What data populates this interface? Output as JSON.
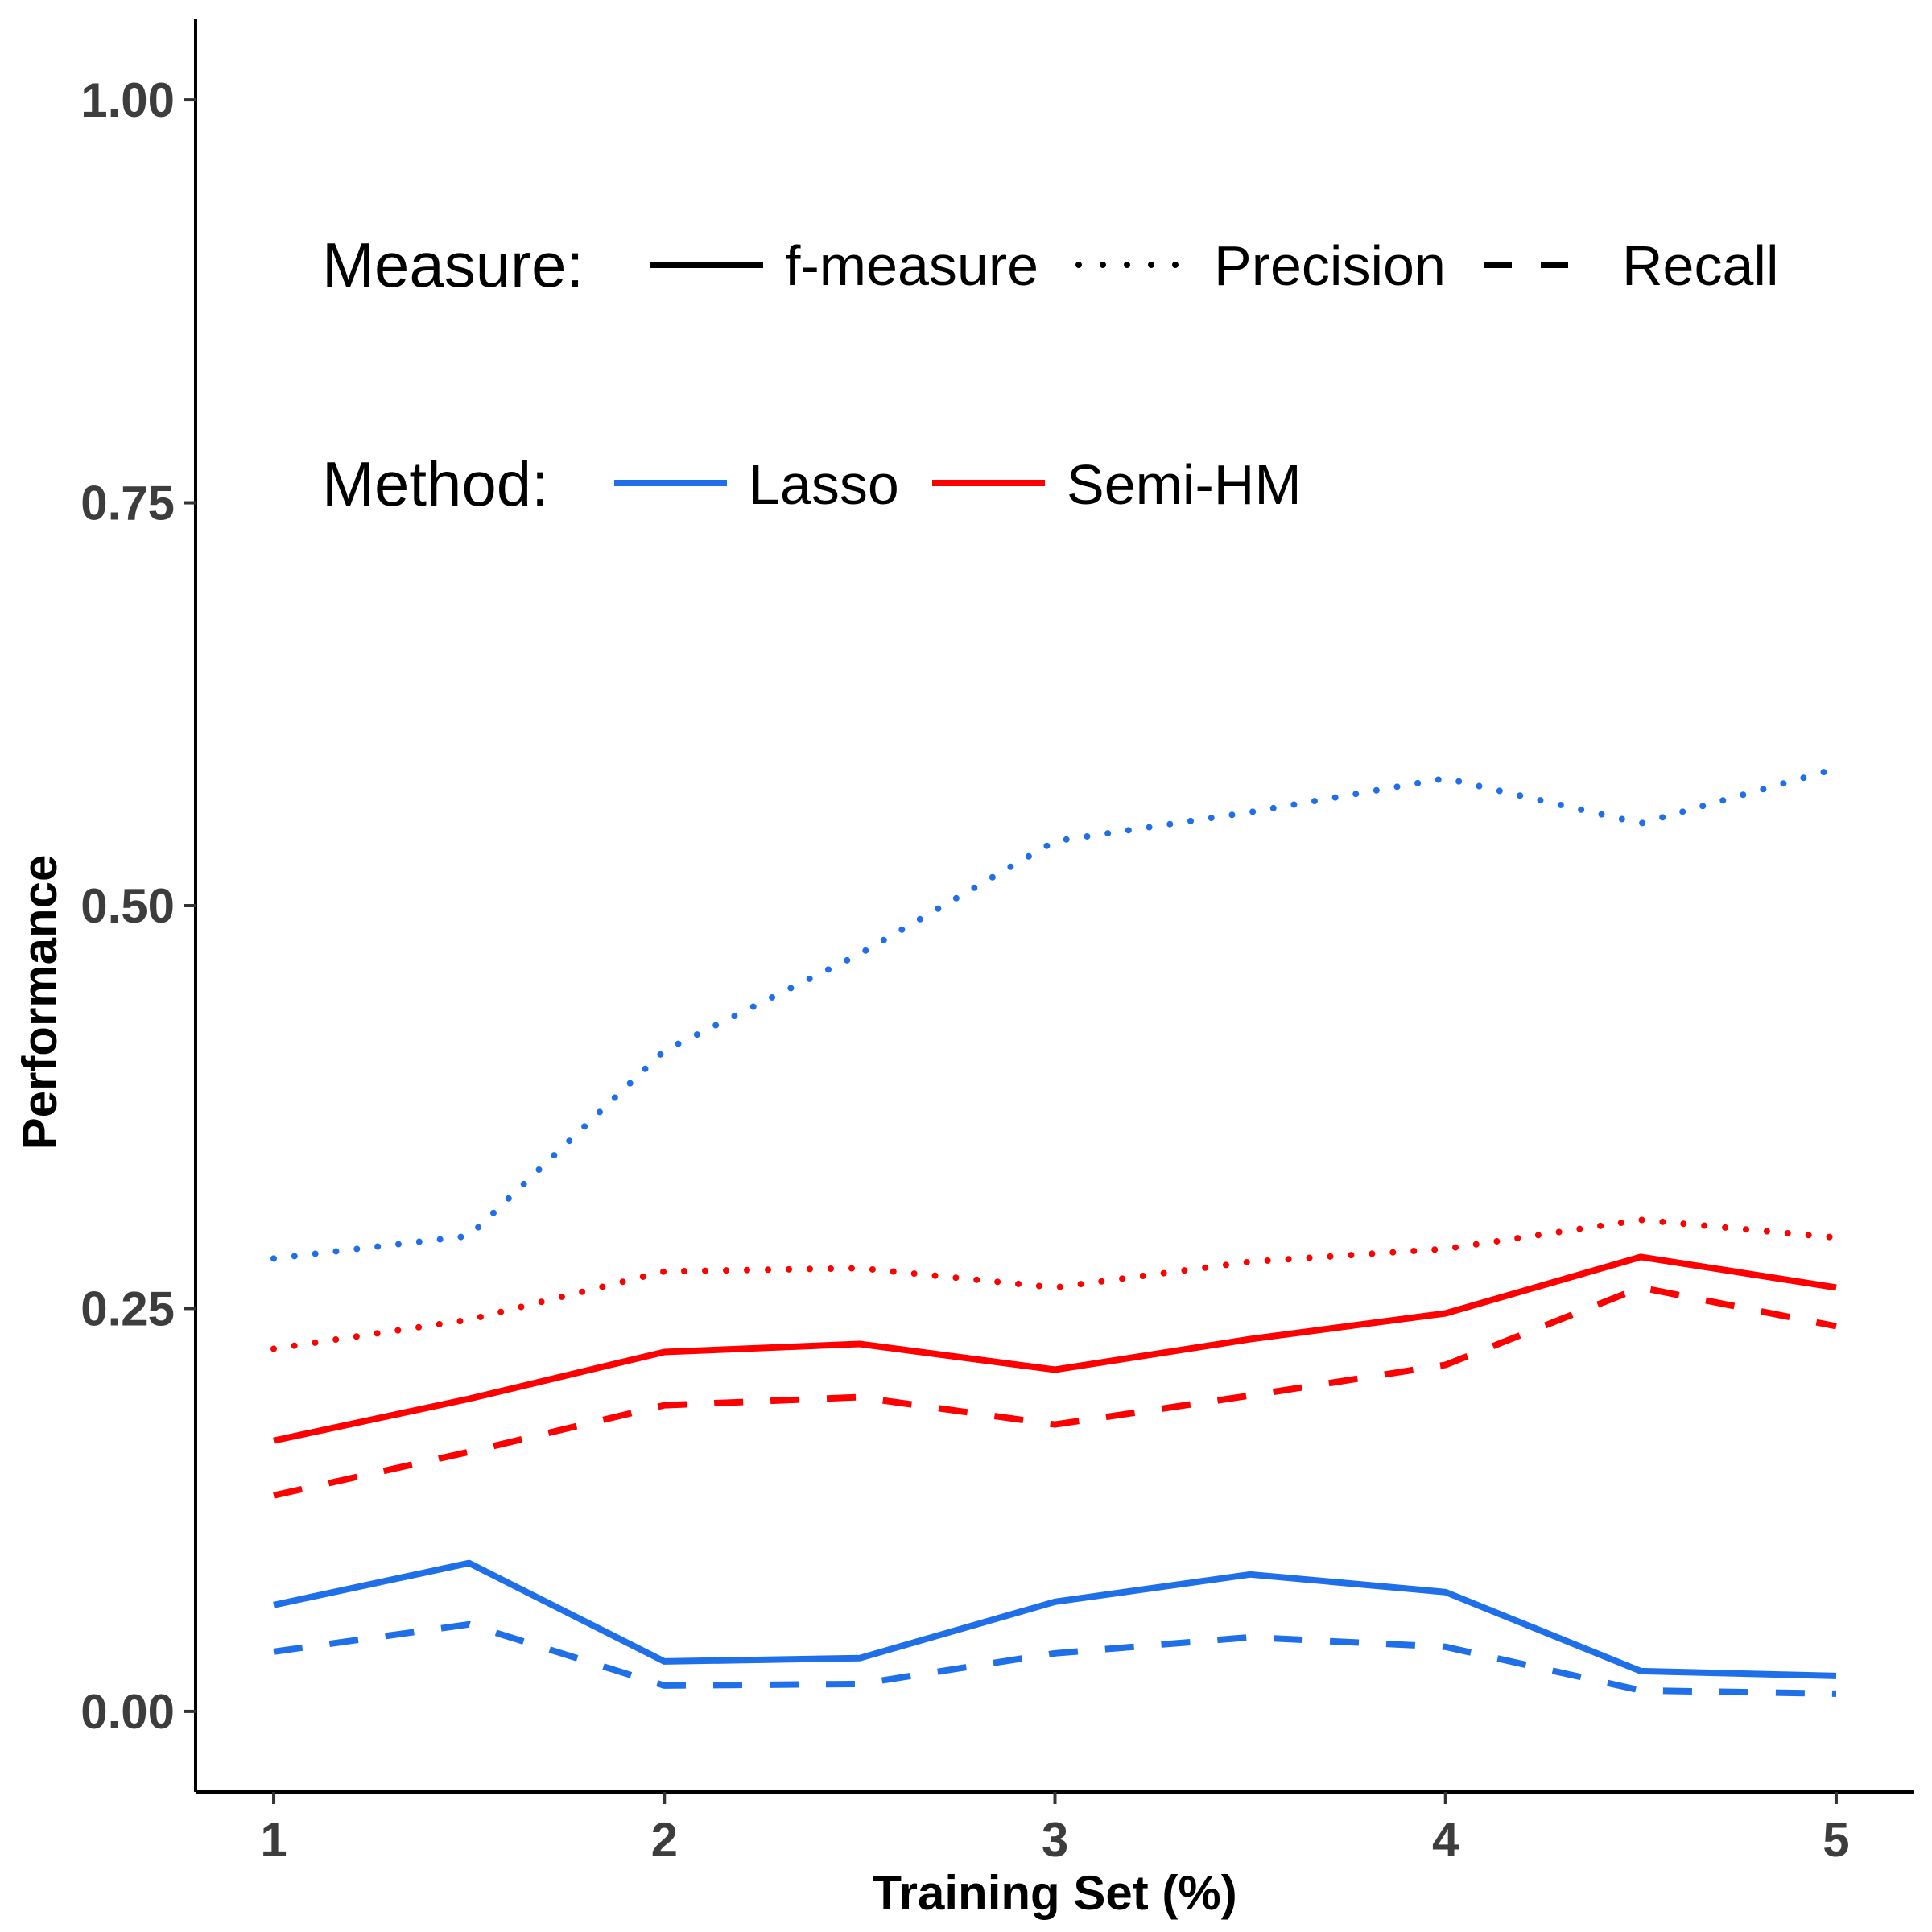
{
  "chart_data": {
    "type": "line",
    "xlabel": "Training Set (%)",
    "ylabel": "Performance",
    "x": [
      1,
      1.5,
      2,
      2.5,
      3,
      3.5,
      4,
      4.5,
      5
    ],
    "xlim": [
      0.8,
      5.2
    ],
    "ylim": [
      -0.05,
      1.05
    ],
    "xticks": [
      1,
      2,
      3,
      4,
      5
    ],
    "xtick_labels": [
      "1",
      "2",
      "3",
      "4",
      "5"
    ],
    "yticks": [
      0,
      0.25,
      0.5,
      0.75,
      1.0
    ],
    "ytick_labels": [
      "0.00",
      "0.25",
      "0.50",
      "0.75",
      "1.00"
    ],
    "grid": false,
    "legend": {
      "placement": "top-left inside",
      "measure_title": "Measure:",
      "measures": [
        {
          "label": "f-measure",
          "linestyle": "solid"
        },
        {
          "label": "Precision",
          "linestyle": "dotted"
        },
        {
          "label": "Recall",
          "linestyle": "dashed"
        }
      ],
      "method_title": "Method:",
      "methods": [
        {
          "label": "Lasso",
          "color": "#1f6fe8"
        },
        {
          "label": "Semi-HM",
          "color": "#ff0000"
        }
      ]
    },
    "series": [
      {
        "method": "Lasso",
        "measure": "f-measure",
        "color": "#1f6fe8",
        "linestyle": "solid",
        "values": [
          0.066,
          0.092,
          0.031,
          0.033,
          0.068,
          0.085,
          0.074,
          0.025,
          0.022
        ]
      },
      {
        "method": "Lasso",
        "measure": "Precision",
        "color": "#1f6fe8",
        "linestyle": "dotted",
        "values": [
          0.281,
          0.295,
          0.41,
          0.47,
          0.54,
          0.558,
          0.579,
          0.551,
          0.585
        ]
      },
      {
        "method": "Lasso",
        "measure": "Recall",
        "color": "#1f6fe8",
        "linestyle": "dashed",
        "values": [
          0.037,
          0.054,
          0.016,
          0.017,
          0.036,
          0.046,
          0.04,
          0.013,
          0.011
        ]
      },
      {
        "method": "Semi-HM",
        "measure": "f-measure",
        "color": "#ff0000",
        "linestyle": "solid",
        "values": [
          0.168,
          0.194,
          0.223,
          0.228,
          0.212,
          0.231,
          0.247,
          0.282,
          0.263
        ]
      },
      {
        "method": "Semi-HM",
        "measure": "Precision",
        "color": "#ff0000",
        "linestyle": "dotted",
        "values": [
          0.225,
          0.243,
          0.273,
          0.275,
          0.263,
          0.279,
          0.287,
          0.305,
          0.294
        ]
      },
      {
        "method": "Semi-HM",
        "measure": "Recall",
        "color": "#ff0000",
        "linestyle": "dashed",
        "values": [
          0.134,
          0.161,
          0.19,
          0.195,
          0.178,
          0.196,
          0.215,
          0.263,
          0.239
        ]
      }
    ]
  }
}
